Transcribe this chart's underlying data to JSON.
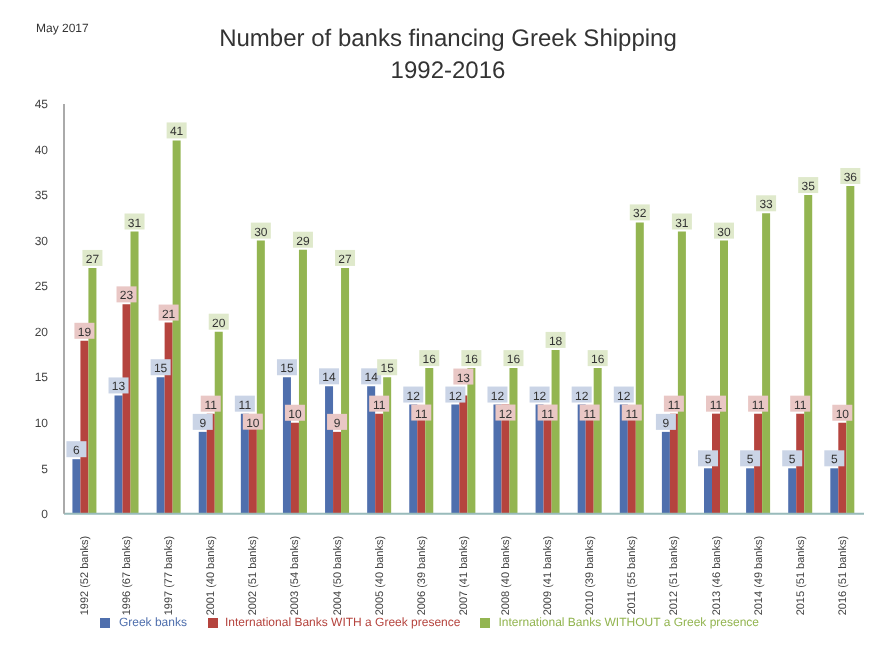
{
  "chart_data": {
    "type": "bar",
    "title": "Number of banks financing Greek Shipping",
    "subtitle": "1992-2016",
    "annotations": [
      "May 2017"
    ],
    "categories": [
      "1992 (52 banks)",
      "1996 (67 banks)",
      "1997 (77 banks)",
      "2001 (40 banks)",
      "2002 (51 banks)",
      "2003 (54 banks)",
      "2004 (50 banks)",
      "2005 (40 banks)",
      "2006 (39 banks)",
      "2007 (41 banks)",
      "2008 (40 banks)",
      "2009 (41 banks)",
      "2010 (39 banks)",
      "2011 (55 banks)",
      "2012 (51 banks)",
      "2013 (46 banks)",
      "2014 (49 banks)",
      "2015 (51 banks)",
      "2016 (51 banks)"
    ],
    "series": [
      {
        "name": "Greek banks",
        "color": "#4f6fad",
        "values": [
          6,
          13,
          15,
          9,
          11,
          15,
          14,
          14,
          12,
          12,
          12,
          12,
          12,
          12,
          9,
          5,
          5,
          5,
          5
        ]
      },
      {
        "name": "International Banks WITH a Greek presence",
        "color": "#b5443e",
        "values": [
          19,
          23,
          21,
          11,
          10,
          10,
          9,
          11,
          11,
          13,
          12,
          11,
          11,
          11,
          11,
          11,
          11,
          11,
          10
        ]
      },
      {
        "name": "International Banks WITHOUT a Greek presence",
        "color": "#93b551",
        "values": [
          27,
          31,
          41,
          20,
          30,
          29,
          27,
          15,
          16,
          16,
          16,
          18,
          16,
          32,
          31,
          30,
          33,
          35,
          36
        ]
      }
    ],
    "ylim": [
      0,
      45
    ],
    "yticks": [
      0,
      5,
      10,
      15,
      20,
      25,
      30,
      35,
      40,
      45
    ],
    "data_labels": true,
    "legend": "bottom",
    "grid": false
  }
}
